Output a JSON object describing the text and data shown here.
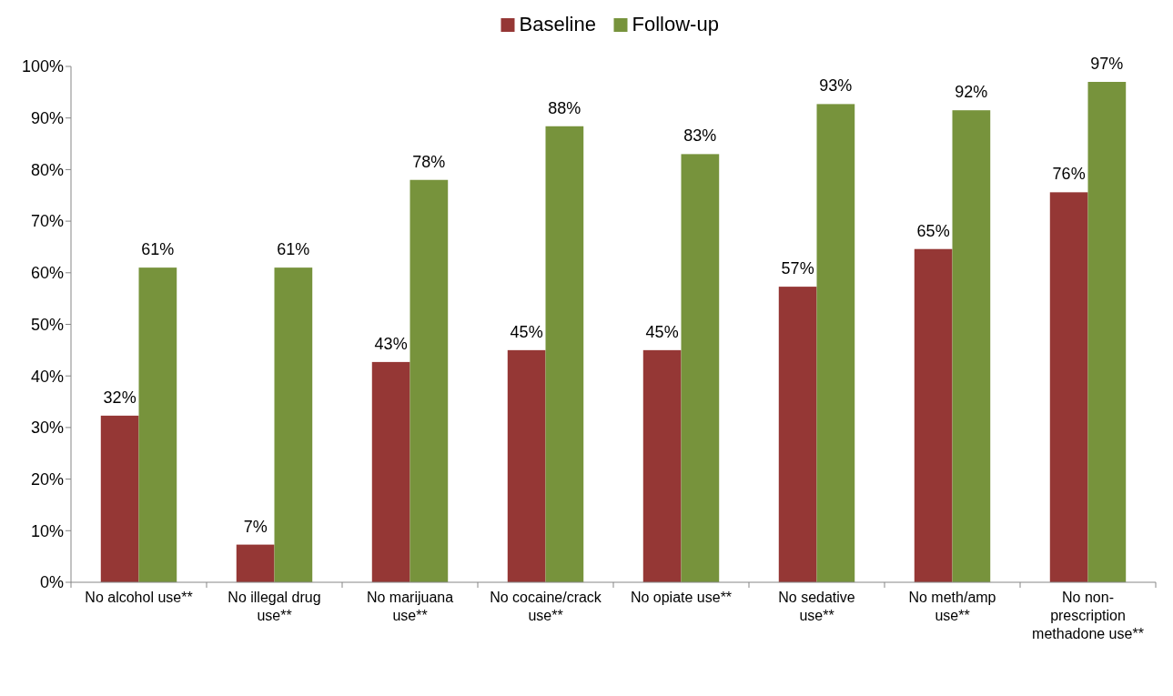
{
  "chart_data": {
    "type": "bar",
    "categories": [
      "No alcohol use**",
      "No illegal drug use**",
      "No marijuana use**",
      "No cocaine/crack use**",
      "No opiate use**",
      "No sedative use**",
      "No meth/amp use**",
      "No non-prescription methadone use**"
    ],
    "series": [
      {
        "name": "Baseline",
        "color": "#953735",
        "values": [
          32.3,
          7.3,
          42.7,
          45,
          45,
          57.3,
          64.6,
          75.6
        ],
        "value_labels": [
          "32%",
          "7%",
          "43%",
          "45%",
          "45%",
          "57%",
          "65%",
          "76%"
        ]
      },
      {
        "name": "Follow-up",
        "color": "#77933c",
        "values": [
          61,
          61,
          78,
          88.4,
          83,
          92.7,
          91.5,
          97
        ],
        "value_labels": [
          "61%",
          "61%",
          "78%",
          "88%",
          "83%",
          "93%",
          "92%",
          "97%"
        ]
      }
    ],
    "ylim": [
      0,
      100
    ],
    "yticks": [
      {
        "value": 0,
        "label": "0%"
      },
      {
        "value": 10,
        "label": "10%"
      },
      {
        "value": 20,
        "label": "20%"
      },
      {
        "value": 30,
        "label": "30%"
      },
      {
        "value": 40,
        "label": "40%"
      },
      {
        "value": 50,
        "label": "50%"
      },
      {
        "value": 60,
        "label": "60%"
      },
      {
        "value": 70,
        "label": "70%"
      },
      {
        "value": 80,
        "label": "80%"
      },
      {
        "value": 90,
        "label": "90%"
      },
      {
        "value": 100,
        "label": "100%"
      }
    ],
    "legend": "top"
  }
}
